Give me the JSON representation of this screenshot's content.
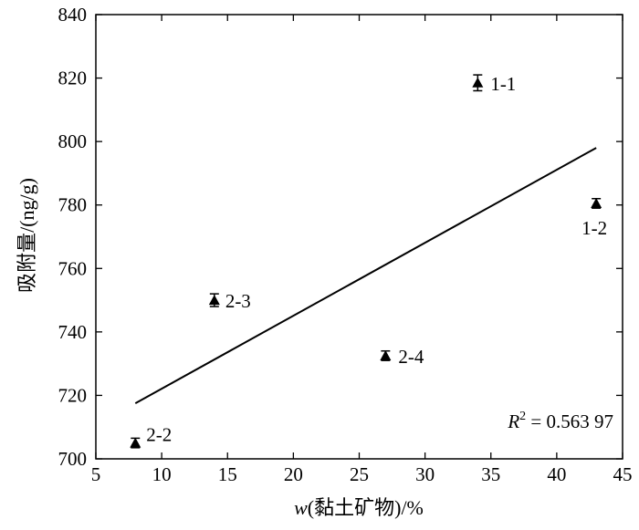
{
  "chart_data": {
    "type": "scatter",
    "xlabel_prefix": "w",
    "xlabel_suffix": "(黏土矿物)/%",
    "ylabel": "吸附量/(ng/g)",
    "xlim": [
      5,
      45
    ],
    "ylim": [
      700,
      840
    ],
    "xticks": [
      5,
      10,
      15,
      20,
      25,
      30,
      35,
      40,
      45
    ],
    "yticks": [
      700,
      720,
      740,
      760,
      780,
      800,
      820,
      840
    ],
    "marker": "triangle",
    "marker_color": "#000000",
    "grid": false,
    "points": [
      {
        "label": "1-1",
        "x": 34,
        "y": 818.5,
        "err": 2.5
      },
      {
        "label": "1-2",
        "x": 43,
        "y": 780.5,
        "err": 1.5
      },
      {
        "label": "2-3",
        "x": 14,
        "y": 750,
        "err": 2
      },
      {
        "label": "2-4",
        "x": 27,
        "y": 732.5,
        "err": 1.5
      },
      {
        "label": "2-2",
        "x": 8,
        "y": 705,
        "err": 1.5
      }
    ],
    "fit_line": {
      "x": [
        8,
        43
      ],
      "y": [
        717.5,
        798
      ]
    },
    "annotation": {
      "prefix": "R",
      "superscript": "2",
      "text": " = 0.563 97"
    }
  }
}
